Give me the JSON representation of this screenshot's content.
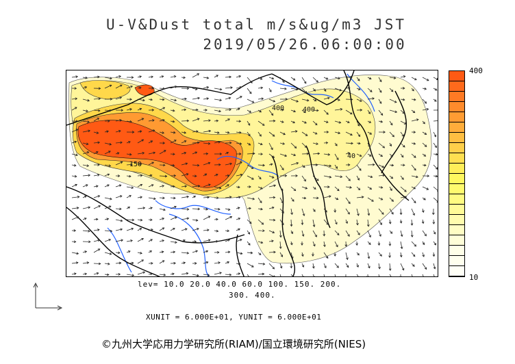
{
  "title": {
    "line1": "U-V&Dust  total  m/s&ug/m3 JST",
    "line2": "2019/05/26.06:00:00"
  },
  "map": {
    "description_layers": [
      "dust-concentration-shading",
      "contour-lines",
      "wind-vectors",
      "coastlines",
      "rivers"
    ],
    "contour_labels": [
      "400",
      "400",
      "150",
      "40"
    ]
  },
  "colorbar": {
    "max_label": "400",
    "min_label": "10",
    "colors": [
      "#ff5a14",
      "#ff6a1c",
      "#ff7a24",
      "#ff8b2c",
      "#ff9c33",
      "#ffad3b",
      "#ffbe42",
      "#ffcf4a",
      "#ffdf51",
      "#ffee59",
      "#fff75f",
      "#fffa6e",
      "#fffb82",
      "#fffb98",
      "#fffcae",
      "#fffdc4",
      "#fffed8",
      "#ffffe8",
      "#ffffee",
      "#fffff6"
    ]
  },
  "levels": {
    "line1": "lev= 10.0 20.0 40.0 60.0 100. 150. 200.",
    "line2": "300. 400."
  },
  "units": "XUNIT = 6.000E+01, YUNIT = 6.000E+01",
  "credit": "©九州大学応用力学研究所(RIAM)/国立環境研究所(NIES)"
}
